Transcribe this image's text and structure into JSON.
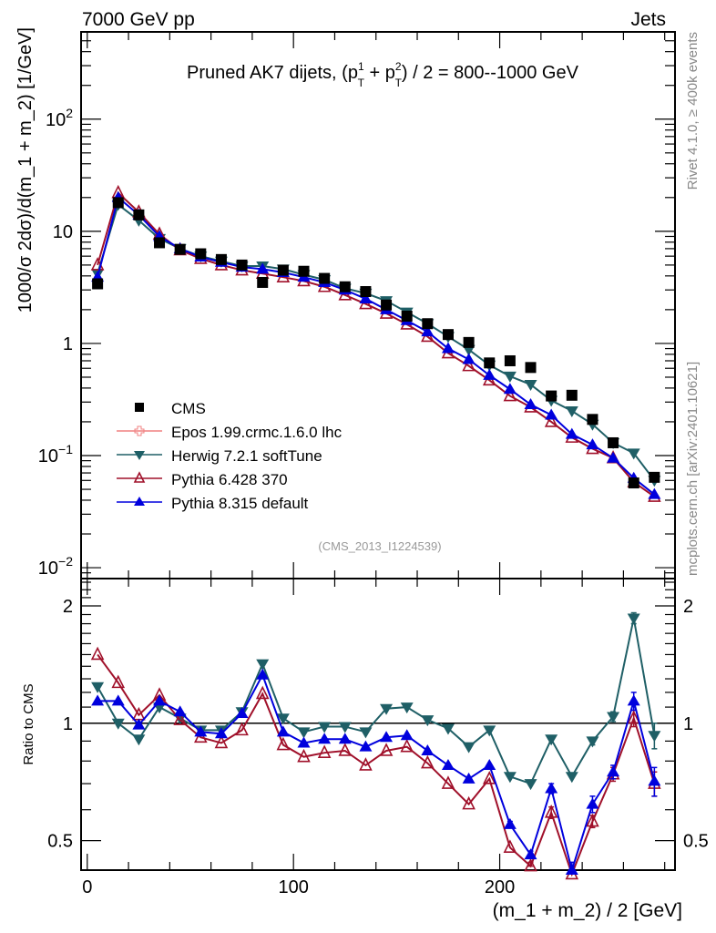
{
  "header": {
    "left": "7000 GeV pp",
    "right": "Jets"
  },
  "side_labels": {
    "rivet": "Rivet 4.1.0, ≥ 400k events",
    "mcplots": "mcplots.cern.ch [arXiv:2401.10621]"
  },
  "chart_data": [
    {
      "type": "line",
      "panel": "main",
      "title": "Pruned AK7 dijets, (p_T^1 + p_T^2) / 2 = 800--1000 GeV",
      "title_parts": {
        "pre": "Pruned AK7 dijets, (p",
        "sup1": "1",
        "sub1": "T",
        "mid": " + p",
        "sup2": "2",
        "sub2": "T",
        "post": ") / 2 = 800--1000 GeV"
      },
      "ylabel": "1000/σ  2dσ)/d(m_1 + m_2) [1/GeV]",
      "xlabel": "",
      "yscale": "log",
      "ylim": [
        0.008,
        600
      ],
      "xlim": [
        -3,
        285
      ],
      "ytick_labels": [
        {
          "value": 0.01,
          "base": "10",
          "exp": "−2"
        },
        {
          "value": 0.1,
          "base": "10",
          "exp": "−1"
        },
        {
          "value": 1,
          "base": "1",
          "exp": ""
        },
        {
          "value": 10,
          "base": "10",
          "exp": ""
        },
        {
          "value": 100,
          "base": "10",
          "exp": "2"
        }
      ],
      "annotation": "(CMS_2013_I1224539)",
      "legend_position": "lower-left",
      "x": [
        5,
        15,
        25,
        35,
        45,
        55,
        65,
        75,
        85,
        95,
        105,
        115,
        125,
        135,
        145,
        155,
        165,
        175,
        185,
        195,
        205,
        215,
        225,
        235,
        245,
        255,
        265,
        275
      ],
      "series": [
        {
          "name": "CMS",
          "color": "#000000",
          "marker": "square",
          "values": [
            3.4,
            18.0,
            14.0,
            7.9,
            6.9,
            6.3,
            5.6,
            5.0,
            3.5,
            4.5,
            4.4,
            3.8,
            3.2,
            2.9,
            2.2,
            1.75,
            1.5,
            1.2,
            1.02,
            0.67,
            0.7,
            0.61,
            0.34,
            0.345,
            0.21,
            0.13,
            0.057,
            0.064
          ]
        },
        {
          "name": "Epos 1.99.crmc.1.6.0 lhc",
          "color": "#f08080",
          "marker": "open-cross",
          "values": []
        },
        {
          "name": "Herwig 7.2.1 softTune",
          "color": "#1f5f66",
          "marker": "down-triangle",
          "values": [
            4.2,
            17.3,
            12.5,
            8.6,
            7.0,
            6.0,
            5.4,
            4.9,
            4.9,
            4.6,
            4.1,
            3.7,
            3.1,
            2.8,
            2.4,
            1.9,
            1.5,
            1.15,
            0.88,
            0.64,
            0.51,
            0.43,
            0.31,
            0.25,
            0.19,
            0.13,
            0.105,
            0.06
          ]
        },
        {
          "name": "Pythia 6.428 370",
          "color": "#a0102a",
          "marker": "open-up-triangle",
          "values": [
            5.0,
            22.0,
            14.8,
            9.4,
            6.8,
            5.7,
            5.0,
            4.5,
            4.2,
            3.9,
            3.6,
            3.2,
            2.7,
            2.25,
            1.85,
            1.48,
            1.15,
            0.82,
            0.63,
            0.47,
            0.34,
            0.27,
            0.2,
            0.145,
            0.115,
            0.095,
            0.058,
            0.043
          ]
        },
        {
          "name": "Pythia 8.315 default",
          "color": "#0000dd",
          "marker": "up-triangle",
          "values": [
            3.9,
            20.0,
            14.0,
            9.0,
            7.0,
            5.9,
            5.3,
            4.8,
            4.6,
            4.3,
            3.9,
            3.5,
            3.0,
            2.5,
            2.0,
            1.6,
            1.27,
            0.9,
            0.72,
            0.52,
            0.39,
            0.285,
            0.23,
            0.155,
            0.125,
            0.095,
            0.063,
            0.045
          ]
        }
      ]
    },
    {
      "type": "line",
      "panel": "ratio",
      "ylabel": "Ratio to CMS",
      "xlabel": "(m_1 + m_2) / 2 [GeV]",
      "yscale": "log",
      "ylim": [
        0.42,
        2.35
      ],
      "xlim": [
        -3,
        285
      ],
      "xtick_labels": [
        "0",
        "100",
        "200"
      ],
      "xtick_values": [
        0,
        100,
        200
      ],
      "ytick_labels": [
        "0.5",
        "1",
        "2"
      ],
      "ytick_values": [
        0.5,
        1,
        2
      ],
      "reference_line": 1,
      "x": [
        5,
        15,
        25,
        35,
        45,
        55,
        65,
        75,
        85,
        95,
        105,
        115,
        125,
        135,
        145,
        155,
        165,
        175,
        185,
        195,
        205,
        215,
        225,
        235,
        245,
        255,
        265,
        275
      ],
      "series": [
        {
          "name": "Herwig 7.2.1 softTune",
          "color": "#1f5f66",
          "marker": "down-triangle",
          "values": [
            1.24,
            1.0,
            0.91,
            1.1,
            1.03,
            0.96,
            0.96,
            1.07,
            1.42,
            1.03,
            0.95,
            0.98,
            0.98,
            0.95,
            1.09,
            1.1,
            1.02,
            0.97,
            0.87,
            0.96,
            0.73,
            0.7,
            0.91,
            0.73,
            0.9,
            1.04,
            1.86,
            0.93
          ],
          "errors": [
            0,
            0,
            0,
            0,
            0,
            0,
            0,
            0,
            0,
            0,
            0,
            0,
            0,
            0,
            0,
            0,
            0,
            0,
            0,
            0,
            0,
            0,
            0,
            0,
            0.02,
            0.03,
            0.06,
            0.07
          ]
        },
        {
          "name": "Pythia 6.428 370",
          "color": "#a0102a",
          "marker": "open-up-triangle",
          "values": [
            1.5,
            1.27,
            1.05,
            1.18,
            1.02,
            0.92,
            0.89,
            0.96,
            1.19,
            0.88,
            0.82,
            0.84,
            0.85,
            0.78,
            0.85,
            0.87,
            0.79,
            0.7,
            0.62,
            0.72,
            0.48,
            0.43,
            0.59,
            0.41,
            0.56,
            0.74,
            1.03,
            0.7
          ],
          "errors": [
            0,
            0,
            0,
            0,
            0,
            0,
            0,
            0,
            0,
            0,
            0,
            0,
            0,
            0,
            0,
            0,
            0,
            0,
            0,
            0,
            0,
            0.01,
            0.02,
            0.02,
            0.02,
            0.03,
            0.05,
            0.05
          ]
        },
        {
          "name": "Pythia 8.315 default",
          "color": "#0000dd",
          "marker": "up-triangle",
          "values": [
            1.14,
            1.14,
            0.99,
            1.14,
            1.07,
            0.95,
            0.94,
            1.06,
            1.33,
            0.95,
            0.89,
            0.91,
            0.91,
            0.87,
            0.92,
            0.93,
            0.85,
            0.78,
            0.72,
            0.78,
            0.55,
            0.46,
            0.68,
            0.42,
            0.62,
            0.75,
            1.14,
            0.71
          ],
          "errors": [
            0,
            0,
            0,
            0,
            0,
            0,
            0,
            0,
            0,
            0,
            0,
            0,
            0,
            0,
            0,
            0,
            0,
            0,
            0,
            0,
            0.01,
            0.01,
            0.02,
            0.02,
            0.03,
            0.03,
            0.06,
            0.06
          ]
        }
      ]
    }
  ]
}
